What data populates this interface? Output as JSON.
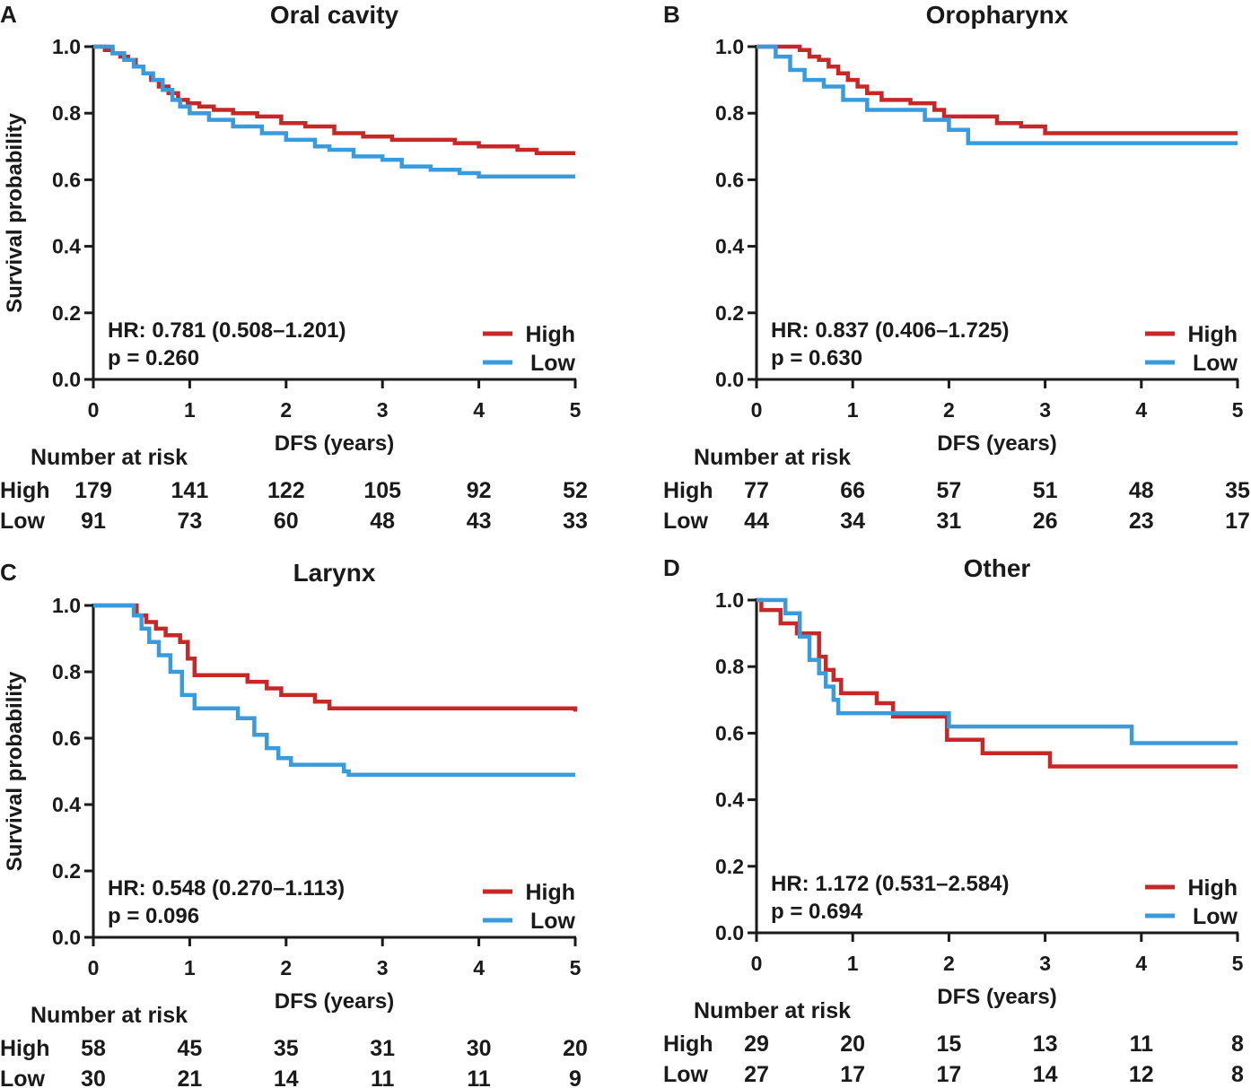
{
  "chart_data": [
    {
      "panel": "A",
      "type": "line",
      "title": "Oral cavity",
      "xlabel": "DFS (years)",
      "ylabel": "Survival probability",
      "xlim": [
        0,
        5
      ],
      "ylim": [
        0,
        1.0
      ],
      "xticks": [
        "0",
        "1",
        "2",
        "3",
        "4",
        "5"
      ],
      "yticks": [
        "0.0",
        "0.2",
        "0.4",
        "0.6",
        "0.8",
        "1.0"
      ],
      "hr_text": "HR: 0.781 (0.508–1.201)",
      "p_text": "p = 0.260",
      "series": [
        {
          "name": "High",
          "color": "#c62828",
          "x": [
            0,
            0.12,
            0.2,
            0.28,
            0.36,
            0.44,
            0.52,
            0.6,
            0.68,
            0.78,
            0.88,
            0.98,
            1.1,
            1.25,
            1.45,
            1.7,
            1.95,
            2.2,
            2.5,
            2.8,
            3.1,
            3.5,
            3.75,
            4.0,
            4.4,
            4.6,
            5.0
          ],
          "y": [
            1.0,
            0.99,
            0.98,
            0.97,
            0.96,
            0.94,
            0.92,
            0.9,
            0.88,
            0.86,
            0.84,
            0.83,
            0.82,
            0.81,
            0.8,
            0.79,
            0.77,
            0.76,
            0.74,
            0.73,
            0.72,
            0.72,
            0.71,
            0.7,
            0.69,
            0.68,
            0.68
          ]
        },
        {
          "name": "Low",
          "color": "#3a9bdc",
          "x": [
            0,
            0.2,
            0.32,
            0.42,
            0.52,
            0.62,
            0.72,
            0.82,
            0.9,
            1.0,
            1.2,
            1.45,
            1.75,
            2.0,
            2.3,
            2.45,
            2.7,
            3.0,
            3.2,
            3.5,
            3.8,
            4.0,
            4.3,
            5.0
          ],
          "y": [
            1.0,
            0.98,
            0.96,
            0.94,
            0.92,
            0.9,
            0.87,
            0.84,
            0.82,
            0.8,
            0.78,
            0.76,
            0.74,
            0.72,
            0.7,
            0.69,
            0.67,
            0.66,
            0.64,
            0.63,
            0.62,
            0.61,
            0.61,
            0.61
          ]
        }
      ],
      "legend": [
        "High",
        "Low"
      ],
      "risk_title": "Number at risk",
      "risk_rows": [
        {
          "label": "High",
          "values": [
            "179",
            "141",
            "122",
            "105",
            "92",
            "52"
          ]
        },
        {
          "label": "Low",
          "values": [
            "91",
            "73",
            "60",
            "48",
            "43",
            "33"
          ]
        }
      ]
    },
    {
      "panel": "B",
      "type": "line",
      "title": "Oropharynx",
      "xlabel": "DFS (years)",
      "ylabel": "",
      "xlim": [
        0,
        5
      ],
      "ylim": [
        0,
        1.0
      ],
      "xticks": [
        "0",
        "1",
        "2",
        "3",
        "4",
        "5"
      ],
      "yticks": [
        "0.0",
        "0.2",
        "0.4",
        "0.6",
        "0.8",
        "1.0"
      ],
      "hr_text": "HR: 0.837 (0.406–1.725)",
      "p_text": "p = 0.630",
      "series": [
        {
          "name": "High",
          "color": "#c62828",
          "x": [
            0,
            0.45,
            0.55,
            0.65,
            0.75,
            0.85,
            0.95,
            1.05,
            1.15,
            1.3,
            1.6,
            1.85,
            1.95,
            2.5,
            2.75,
            3.0,
            5.0
          ],
          "y": [
            1.0,
            0.99,
            0.97,
            0.96,
            0.94,
            0.92,
            0.9,
            0.88,
            0.86,
            0.84,
            0.83,
            0.81,
            0.79,
            0.77,
            0.76,
            0.74,
            0.74
          ]
        },
        {
          "name": "Low",
          "color": "#3a9bdc",
          "x": [
            0,
            0.2,
            0.35,
            0.5,
            0.7,
            0.9,
            1.15,
            1.75,
            2.0,
            2.2,
            5.0
          ],
          "y": [
            1.0,
            0.97,
            0.93,
            0.9,
            0.88,
            0.84,
            0.81,
            0.78,
            0.75,
            0.71,
            0.71
          ]
        }
      ],
      "legend": [
        "High",
        "Low"
      ],
      "risk_title": "Number at risk",
      "risk_rows": [
        {
          "label": "High",
          "values": [
            "77",
            "66",
            "57",
            "51",
            "48",
            "35"
          ]
        },
        {
          "label": "Low",
          "values": [
            "44",
            "34",
            "31",
            "26",
            "23",
            "17"
          ]
        }
      ]
    },
    {
      "panel": "C",
      "type": "line",
      "title": "Larynx",
      "xlabel": "DFS (years)",
      "ylabel": "Survival probability",
      "xlim": [
        0,
        5
      ],
      "ylim": [
        0,
        1.0
      ],
      "xticks": [
        "0",
        "1",
        "2",
        "3",
        "4",
        "5"
      ],
      "yticks": [
        "0.0",
        "0.2",
        "0.4",
        "0.6",
        "0.8",
        "1.0"
      ],
      "hr_text": "HR: 0.548 (0.270–1.113)",
      "p_text": "p = 0.096",
      "series": [
        {
          "name": "High",
          "color": "#c62828",
          "x": [
            0,
            0.45,
            0.55,
            0.65,
            0.75,
            0.9,
            0.98,
            1.05,
            1.6,
            1.8,
            1.95,
            2.3,
            2.45,
            5.0
          ],
          "y": [
            1.0,
            0.97,
            0.95,
            0.93,
            0.91,
            0.89,
            0.84,
            0.79,
            0.77,
            0.75,
            0.73,
            0.71,
            0.69,
            0.68
          ]
        },
        {
          "name": "Low",
          "color": "#3a9bdc",
          "x": [
            0,
            0.42,
            0.5,
            0.58,
            0.68,
            0.8,
            0.92,
            1.05,
            1.5,
            1.67,
            1.8,
            1.92,
            2.05,
            2.6,
            2.65,
            5.0
          ],
          "y": [
            1.0,
            0.97,
            0.93,
            0.89,
            0.85,
            0.8,
            0.73,
            0.69,
            0.66,
            0.61,
            0.57,
            0.54,
            0.52,
            0.5,
            0.49,
            0.49
          ]
        }
      ],
      "legend": [
        "High",
        "Low"
      ],
      "risk_title": "Number at risk",
      "risk_rows": [
        {
          "label": "High",
          "values": [
            "58",
            "45",
            "35",
            "31",
            "30",
            "20"
          ]
        },
        {
          "label": "Low",
          "values": [
            "30",
            "21",
            "14",
            "11",
            "11",
            "9"
          ]
        }
      ]
    },
    {
      "panel": "D",
      "type": "line",
      "title": "Other",
      "xlabel": "DFS (years)",
      "ylabel": "",
      "xlim": [
        0,
        5
      ],
      "ylim": [
        0,
        1.0
      ],
      "xticks": [
        "0",
        "1",
        "2",
        "3",
        "4",
        "5"
      ],
      "yticks": [
        "0.0",
        "0.2",
        "0.4",
        "0.6",
        "0.8",
        "1.0"
      ],
      "hr_text": "HR: 1.172 (0.531–2.584)",
      "p_text": "p = 0.694",
      "series": [
        {
          "name": "High",
          "color": "#c62828",
          "x": [
            0,
            0.05,
            0.25,
            0.42,
            0.52,
            0.65,
            0.72,
            0.8,
            0.88,
            1.25,
            1.42,
            1.98,
            2.35,
            2.95,
            3.05,
            5.0
          ],
          "y": [
            1.0,
            0.97,
            0.93,
            0.9,
            0.9,
            0.83,
            0.79,
            0.76,
            0.72,
            0.69,
            0.65,
            0.58,
            0.54,
            0.54,
            0.5,
            0.5
          ]
        },
        {
          "name": "Low",
          "color": "#3a9bdc",
          "x": [
            0,
            0.15,
            0.3,
            0.45,
            0.55,
            0.65,
            0.72,
            0.8,
            0.85,
            2.0,
            3.9,
            5.0
          ],
          "y": [
            1.0,
            1.0,
            0.96,
            0.89,
            0.82,
            0.78,
            0.74,
            0.7,
            0.66,
            0.62,
            0.57,
            0.57
          ]
        }
      ],
      "legend": [
        "High",
        "Low"
      ],
      "risk_title": "Number at risk",
      "risk_rows": [
        {
          "label": "High",
          "values": [
            "29",
            "20",
            "15",
            "13",
            "11",
            "8"
          ]
        },
        {
          "label": "Low",
          "values": [
            "27",
            "17",
            "17",
            "14",
            "12",
            "8"
          ]
        }
      ]
    }
  ]
}
